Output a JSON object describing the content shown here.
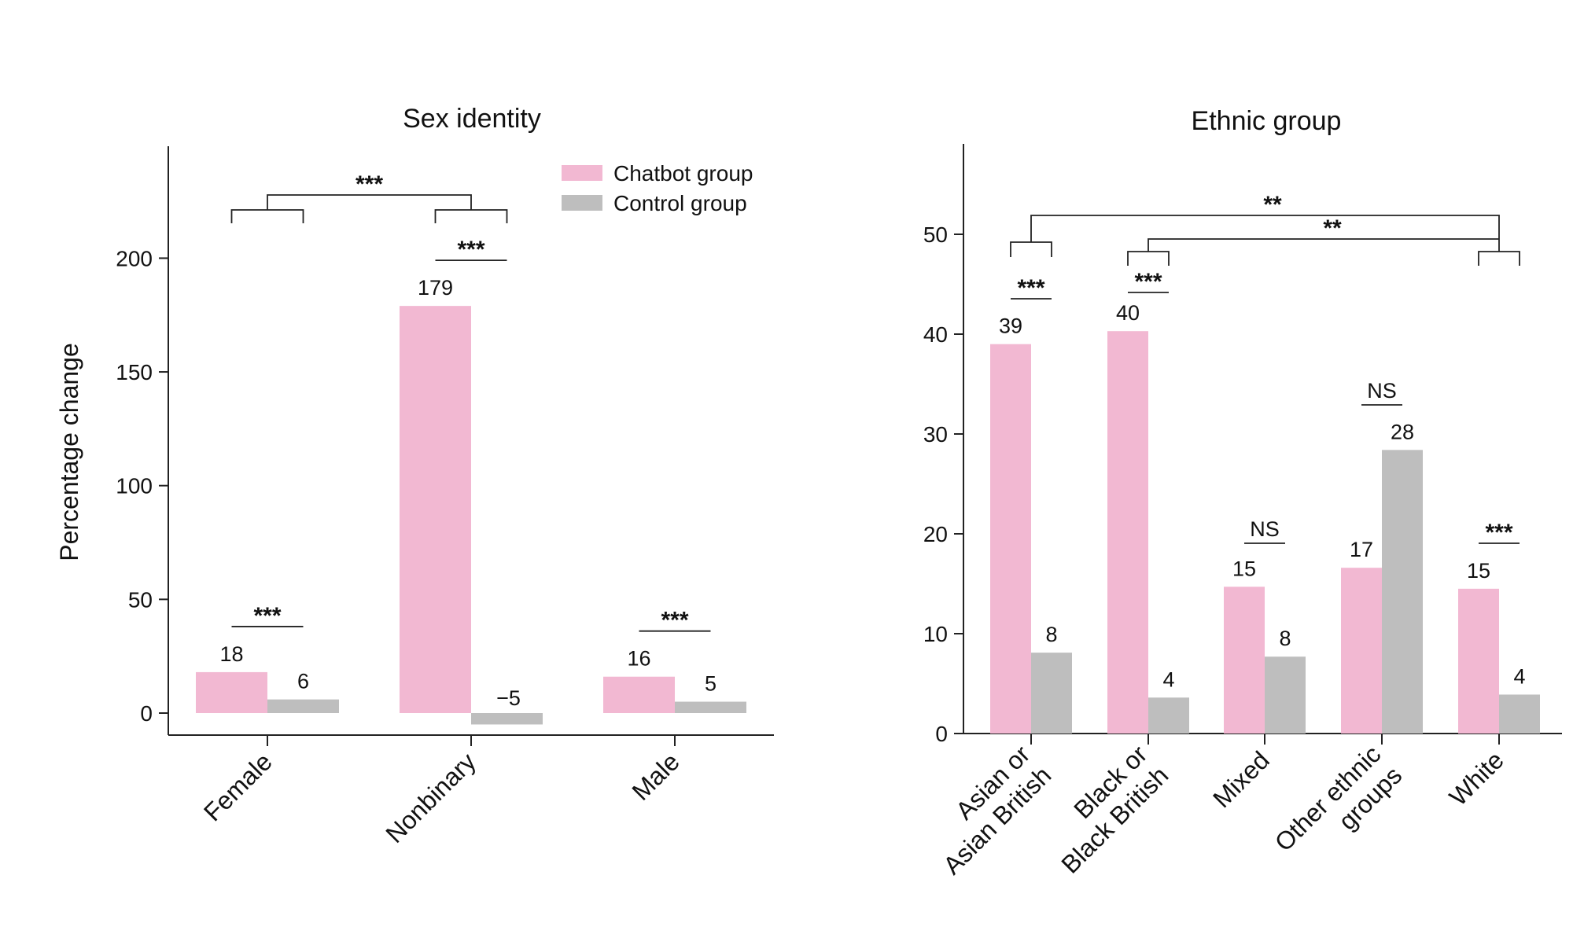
{
  "legend": {
    "chatbot_label": "Chatbot group",
    "control_label": "Control group"
  },
  "colors": {
    "chatbot": "#f2b8d2",
    "control": "#bebebe",
    "axis": "#222222"
  },
  "chart_data": [
    {
      "type": "bar",
      "title": "Sex identity",
      "ylabel": "Percentage change",
      "xlabel": "",
      "categories": [
        "Female",
        "Nonbinary",
        "Male"
      ],
      "series": [
        {
          "name": "Chatbot group",
          "values": [
            18,
            179,
            16
          ]
        },
        {
          "name": "Control group",
          "values": [
            6,
            -5,
            5
          ]
        }
      ],
      "value_labels": {
        "chatbot": [
          "18",
          "179",
          "16"
        ],
        "control": [
          "6",
          "−5",
          "5"
        ]
      },
      "ylim": [
        -10,
        250
      ],
      "yticks": [
        0,
        50,
        100,
        150,
        200
      ],
      "legend_position": "top-right",
      "grid": false,
      "pair_significance": [
        "***",
        "***",
        "***"
      ],
      "group_comparisons": [
        {
          "between": [
            "Female",
            "Nonbinary"
          ],
          "label": "***"
        }
      ]
    },
    {
      "type": "bar",
      "title": "Ethnic group",
      "ylabel": "",
      "xlabel": "",
      "categories": [
        "Asian or\nAsian British",
        "Black or\nBlack British",
        "Mixed",
        "Other ethnic\ngroups",
        "White"
      ],
      "series": [
        {
          "name": "Chatbot group",
          "values": [
            39,
            40.3,
            14.7,
            16.6,
            14.5
          ]
        },
        {
          "name": "Control group",
          "values": [
            8.1,
            3.6,
            7.7,
            28.4,
            3.9
          ]
        }
      ],
      "value_labels": {
        "chatbot": [
          "39",
          "40",
          "15",
          "17",
          "15"
        ],
        "control": [
          "8",
          "4",
          "8",
          "28",
          "4"
        ]
      },
      "ylim": [
        0,
        59
      ],
      "yticks": [
        0,
        10,
        20,
        30,
        40,
        50
      ],
      "grid": false,
      "pair_significance": [
        "***",
        "***",
        "NS",
        "NS",
        "***"
      ],
      "group_comparisons": [
        {
          "between": [
            "Asian or Asian British",
            "White"
          ],
          "label": "**"
        },
        {
          "between": [
            "Black or Black British",
            "White"
          ],
          "label": "**"
        }
      ]
    }
  ]
}
